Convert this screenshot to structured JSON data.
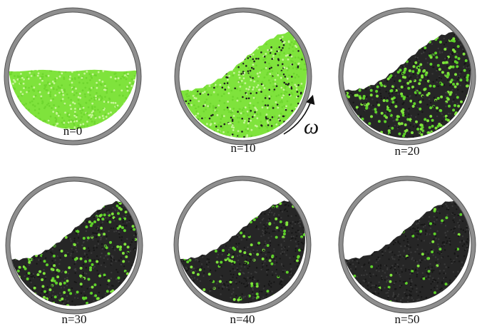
{
  "figure": {
    "panels": [
      {
        "label": "n=0",
        "dark_fraction": 0.0
      },
      {
        "label": "n=10",
        "dark_fraction": 0.25
      },
      {
        "label": "n=20",
        "dark_fraction": 0.55
      },
      {
        "label": "n=30",
        "dark_fraction": 0.72
      },
      {
        "label": "n=40",
        "dark_fraction": 0.85
      },
      {
        "label": "n=50",
        "dark_fraction": 0.93
      }
    ],
    "rotation_symbol": "ω",
    "colors": {
      "green": "#7fe33c",
      "green_highlight": "#c8f59a",
      "dark": "#262626",
      "ring": "#8e8e8e",
      "ring_edge": "#555555"
    }
  }
}
